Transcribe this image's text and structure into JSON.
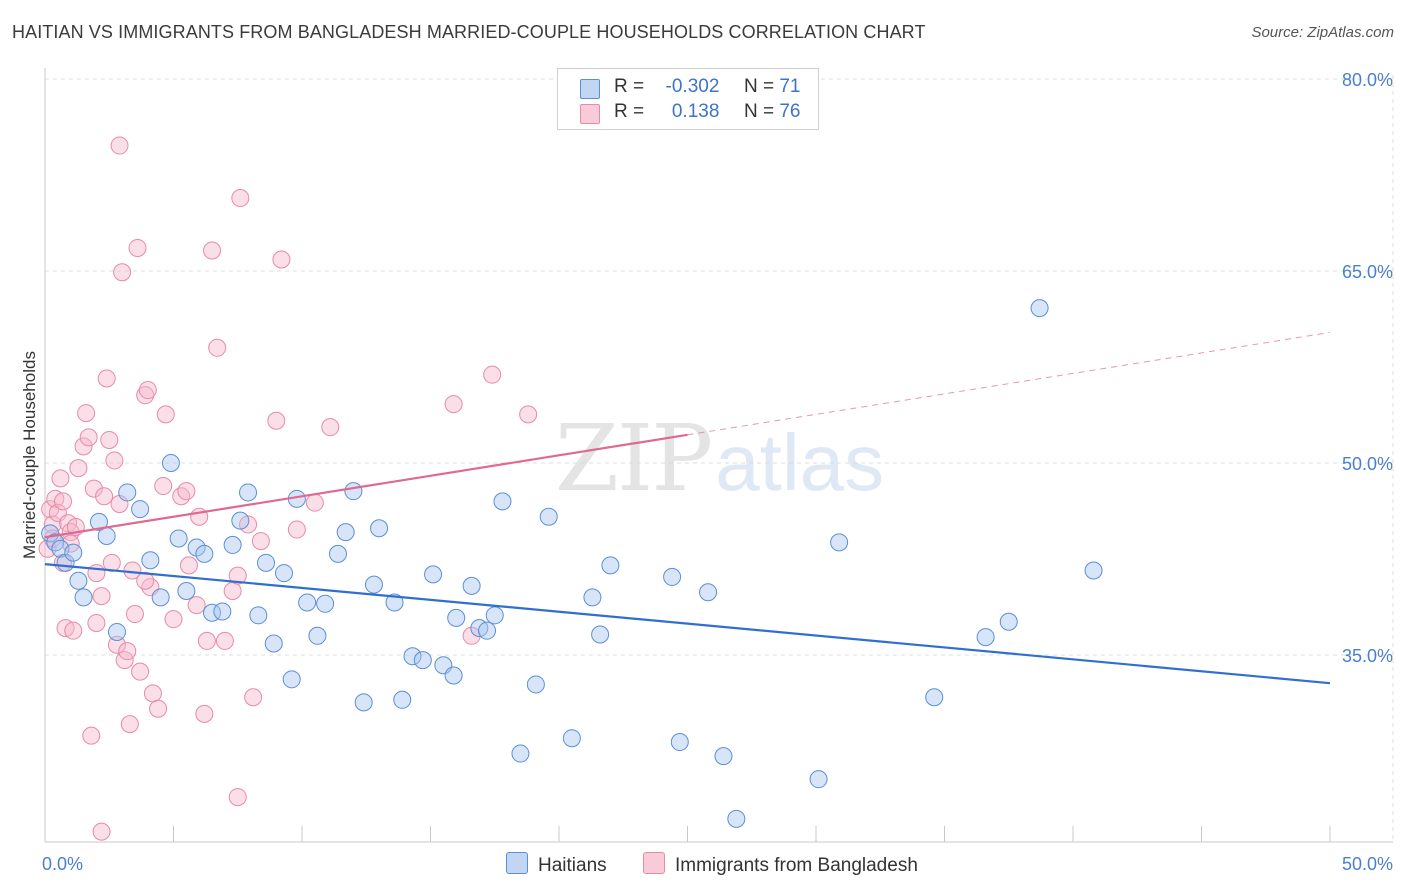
{
  "header": {
    "title": "HAITIAN VS IMMIGRANTS FROM BANGLADESH MARRIED-COUPLE HOUSEHOLDS CORRELATION CHART",
    "source": "Source: ZipAtlas.com"
  },
  "legend": {
    "r_label": "R =",
    "n_label": "N =",
    "series1_r": "-0.302",
    "series1_n": "71",
    "series2_r": "0.138",
    "series2_n": "76",
    "bottom_series1": "Haitians",
    "bottom_series2": "Immigrants from Bangladesh"
  },
  "watermark": {
    "zip": "ZIP",
    "atlas": "atlas"
  },
  "colors": {
    "series1_fill": "#a9c6ef",
    "series1_stroke": "#5b8fd6",
    "series1_line": "#2f6fcf",
    "series2_fill": "#f6b8cb",
    "series2_stroke": "#e88aa6",
    "series2_line": "#e06892",
    "grid": "#dcdcdc",
    "tick_text": "#4a7fcf"
  },
  "chart_data": {
    "type": "scatter",
    "title": "HAITIAN VS IMMIGRANTS FROM BANGLADESH MARRIED-COUPLE HOUSEHOLDS CORRELATION CHART",
    "xlabel": "",
    "ylabel": "Married-couple Households",
    "xlim": [
      0,
      50
    ],
    "ylim": [
      20,
      82
    ],
    "x_ticks_labeled": [
      "0.0%",
      "50.0%"
    ],
    "y_ticks": [
      35,
      50,
      65,
      80
    ],
    "y_tick_labels": [
      "35.0%",
      "50.0%",
      "65.0%",
      "80.0%"
    ],
    "grid": true,
    "legend_placement": "top-center",
    "series": [
      {
        "name": "Haitians",
        "r": -0.302,
        "n": 71,
        "trend": {
          "x": [
            0,
            50
          ],
          "y": [
            42.1,
            32.8
          ],
          "dashed_extension": false
        },
        "points": [
          [
            0.2,
            44.5
          ],
          [
            0.4,
            43.8
          ],
          [
            0.6,
            43.3
          ],
          [
            0.8,
            42.2
          ],
          [
            1.1,
            43.0
          ],
          [
            1.3,
            40.8
          ],
          [
            1.5,
            39.5
          ],
          [
            2.1,
            45.4
          ],
          [
            2.4,
            44.3
          ],
          [
            2.8,
            36.8
          ],
          [
            3.2,
            47.7
          ],
          [
            3.7,
            46.4
          ],
          [
            4.1,
            42.4
          ],
          [
            4.5,
            39.5
          ],
          [
            4.9,
            50.0
          ],
          [
            5.2,
            44.1
          ],
          [
            5.5,
            40.0
          ],
          [
            5.9,
            43.4
          ],
          [
            6.2,
            42.9
          ],
          [
            6.5,
            38.3
          ],
          [
            6.9,
            38.4
          ],
          [
            7.3,
            43.6
          ],
          [
            7.6,
            45.5
          ],
          [
            7.9,
            47.7
          ],
          [
            8.3,
            38.1
          ],
          [
            8.6,
            42.2
          ],
          [
            8.9,
            35.9
          ],
          [
            9.3,
            41.4
          ],
          [
            9.6,
            33.1
          ],
          [
            9.8,
            47.2
          ],
          [
            10.2,
            39.1
          ],
          [
            10.6,
            36.5
          ],
          [
            10.9,
            39.0
          ],
          [
            11.4,
            42.9
          ],
          [
            11.7,
            44.6
          ],
          [
            12.0,
            47.8
          ],
          [
            12.4,
            31.3
          ],
          [
            12.8,
            40.5
          ],
          [
            13.0,
            44.9
          ],
          [
            13.6,
            39.1
          ],
          [
            13.9,
            31.5
          ],
          [
            14.3,
            34.9
          ],
          [
            14.7,
            34.6
          ],
          [
            15.1,
            41.3
          ],
          [
            15.5,
            34.2
          ],
          [
            15.9,
            33.4
          ],
          [
            16.0,
            37.9
          ],
          [
            16.6,
            40.4
          ],
          [
            16.9,
            37.1
          ],
          [
            17.2,
            36.9
          ],
          [
            17.5,
            38.1
          ],
          [
            17.8,
            47.0
          ],
          [
            18.5,
            27.3
          ],
          [
            19.1,
            32.7
          ],
          [
            19.6,
            45.8
          ],
          [
            20.5,
            28.5
          ],
          [
            21.3,
            39.5
          ],
          [
            21.6,
            36.6
          ],
          [
            22.0,
            42.0
          ],
          [
            24.4,
            41.1
          ],
          [
            24.7,
            28.2
          ],
          [
            25.8,
            39.9
          ],
          [
            26.4,
            27.1
          ],
          [
            26.9,
            22.2
          ],
          [
            30.1,
            25.3
          ],
          [
            30.9,
            43.8
          ],
          [
            34.6,
            31.7
          ],
          [
            36.6,
            36.4
          ],
          [
            37.5,
            37.6
          ],
          [
            38.7,
            62.1
          ],
          [
            40.8,
            41.6
          ]
        ]
      },
      {
        "name": "Immigrants from Bangladesh",
        "r": 0.138,
        "n": 76,
        "trend": {
          "x": [
            0,
            25
          ],
          "y": [
            44.2,
            52.2
          ],
          "dashed_extension": {
            "x": [
              25,
              50
            ],
            "y": [
              52.2,
              60.2
            ]
          }
        },
        "points": [
          [
            0.1,
            43.3
          ],
          [
            0.2,
            46.4
          ],
          [
            0.3,
            45.2
          ],
          [
            0.4,
            47.2
          ],
          [
            0.5,
            46.1
          ],
          [
            0.6,
            48.8
          ],
          [
            0.7,
            47.0
          ],
          [
            0.8,
            37.1
          ],
          [
            0.9,
            45.3
          ],
          [
            1.0,
            44.6
          ],
          [
            1.0,
            43.7
          ],
          [
            1.1,
            36.9
          ],
          [
            1.2,
            45.0
          ],
          [
            1.3,
            49.6
          ],
          [
            1.5,
            51.3
          ],
          [
            1.6,
            53.9
          ],
          [
            1.7,
            52.0
          ],
          [
            1.8,
            28.7
          ],
          [
            1.9,
            48.0
          ],
          [
            2.0,
            37.5
          ],
          [
            2.0,
            41.4
          ],
          [
            2.2,
            21.2
          ],
          [
            2.3,
            47.4
          ],
          [
            2.4,
            56.6
          ],
          [
            2.5,
            51.8
          ],
          [
            2.6,
            42.2
          ],
          [
            2.7,
            50.2
          ],
          [
            2.8,
            35.8
          ],
          [
            2.9,
            46.8
          ],
          [
            2.9,
            74.8
          ],
          [
            3.0,
            64.9
          ],
          [
            3.1,
            34.6
          ],
          [
            3.2,
            35.3
          ],
          [
            3.3,
            29.6
          ],
          [
            3.4,
            41.6
          ],
          [
            3.5,
            38.2
          ],
          [
            3.6,
            66.8
          ],
          [
            3.7,
            33.7
          ],
          [
            3.9,
            55.3
          ],
          [
            4.0,
            55.7
          ],
          [
            4.1,
            40.3
          ],
          [
            4.2,
            32.0
          ],
          [
            4.4,
            30.8
          ],
          [
            4.6,
            48.2
          ],
          [
            4.7,
            53.8
          ],
          [
            5.0,
            37.8
          ],
          [
            5.3,
            47.4
          ],
          [
            5.5,
            47.8
          ],
          [
            5.6,
            42.0
          ],
          [
            5.9,
            38.9
          ],
          [
            6.0,
            45.8
          ],
          [
            6.2,
            30.4
          ],
          [
            6.3,
            36.1
          ],
          [
            6.5,
            66.6
          ],
          [
            6.7,
            59.0
          ],
          [
            7.0,
            36.1
          ],
          [
            7.3,
            40.0
          ],
          [
            7.5,
            41.2
          ],
          [
            7.5,
            23.9
          ],
          [
            7.6,
            70.7
          ],
          [
            7.9,
            45.2
          ],
          [
            8.1,
            31.7
          ],
          [
            8.4,
            43.9
          ],
          [
            9.0,
            53.3
          ],
          [
            9.2,
            65.9
          ],
          [
            9.8,
            44.8
          ],
          [
            10.5,
            46.9
          ],
          [
            11.1,
            52.8
          ],
          [
            15.9,
            54.6
          ],
          [
            16.6,
            36.5
          ],
          [
            17.4,
            56.9
          ],
          [
            18.8,
            53.8
          ],
          [
            0.3,
            44.1
          ],
          [
            0.7,
            42.2
          ],
          [
            2.2,
            39.6
          ],
          [
            3.9,
            40.8
          ]
        ]
      }
    ]
  }
}
